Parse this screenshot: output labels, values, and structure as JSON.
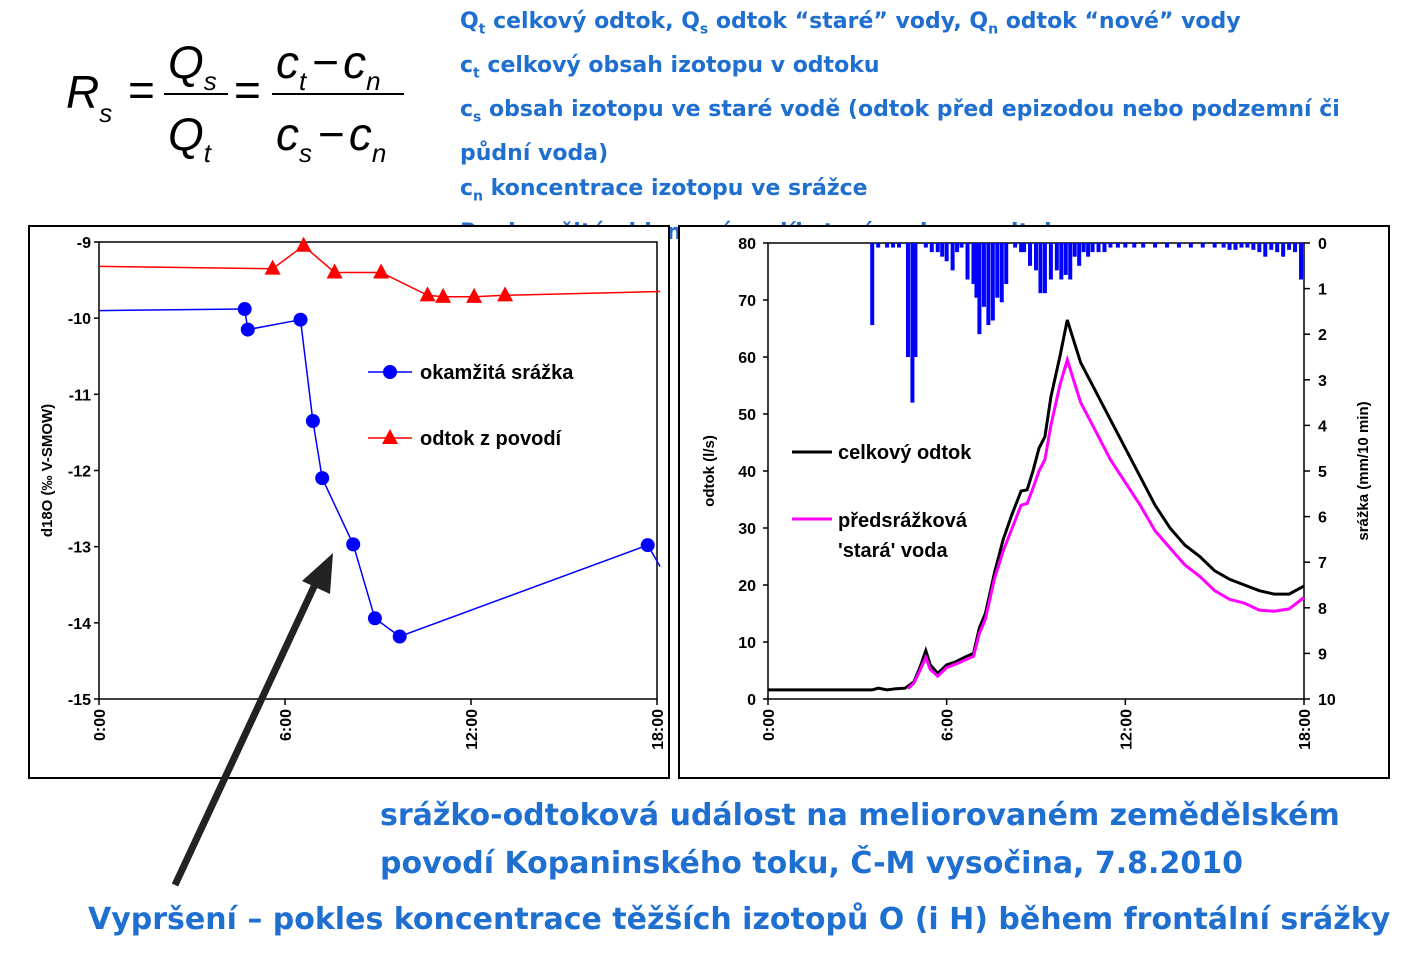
{
  "formula": {
    "lhs_symbol": "R",
    "lhs_sub": "s",
    "num1": "Q",
    "num1_sub": "s",
    "den1": "Q",
    "den1_sub": "t",
    "num2_a": "c",
    "num2_a_sub": "t",
    "num2_b": "c",
    "num2_b_sub": "n",
    "den2_a": "c",
    "den2_a_sub": "s",
    "den2_b": "c",
    "den2_b_sub": "n",
    "minus": "−",
    "equals": "="
  },
  "legend_lines": {
    "l1": {
      "s1": "Q",
      "sub1": "t",
      "t1": "  celkový odtok, Q",
      "sub2": "s",
      "t2": " odtok “staré” vody, Q",
      "sub3": "n",
      "t3": " odtok “nové” vody"
    },
    "l2": {
      "s1": "c",
      "sub1": "t",
      "t1": "  celkový obsah izotopu v odtoku"
    },
    "l3": {
      "s1": "c",
      "sub1": "s",
      "t1": " obsah izotopu ve staré vodě (odtok před epizodou nebo podzemní či"
    },
    "l4": {
      "t1": "půdní voda)"
    },
    "l5": {
      "s1": "c",
      "sub1": "n",
      "t1": " koncentrace izotopu ve srážce"
    },
    "l6": {
      "s1": "R",
      "sub1": "s",
      "t1": " okamžitý objemový podíl staré vody na odtoku"
    }
  },
  "chart_data": [
    {
      "type": "line",
      "title": "",
      "xlabel": "",
      "ylabel": "d18O (‰ V-SMOW)",
      "xlim": [
        0,
        18
      ],
      "ylim": [
        -15,
        -9
      ],
      "xticks": [
        {
          "value": 0,
          "label": "0:00"
        },
        {
          "value": 6,
          "label": "6:00"
        },
        {
          "value": 12,
          "label": "12:00"
        },
        {
          "value": 18,
          "label": "18:00"
        }
      ],
      "yticks": [
        {
          "value": -9,
          "label": "-9"
        },
        {
          "value": -10,
          "label": "-10"
        },
        {
          "value": -11,
          "label": "-11"
        },
        {
          "value": -12,
          "label": "-12"
        },
        {
          "value": -13,
          "label": "-13"
        },
        {
          "value": -14,
          "label": "-14"
        },
        {
          "value": -15,
          "label": "-15"
        }
      ],
      "series": [
        {
          "name": "okamžitá srážka",
          "color": "#0000ff",
          "marker": "circle",
          "line_extent": {
            "start": [
              0,
              -9.9
            ],
            "end": [
              18.1,
              -13.26
            ]
          },
          "points": [
            [
              4.7,
              -9.88
            ],
            [
              4.8,
              -10.15
            ],
            [
              6.5,
              -10.02
            ],
            [
              6.9,
              -11.35
            ],
            [
              7.2,
              -12.1
            ],
            [
              8.2,
              -12.97
            ],
            [
              8.9,
              -13.94
            ],
            [
              9.7,
              -14.18
            ],
            [
              17.7,
              -12.98
            ]
          ]
        },
        {
          "name": "odtok z povodí",
          "color": "#ff0000",
          "marker": "triangle",
          "line_extent": {
            "start": [
              0,
              -9.32
            ],
            "end": [
              18.1,
              -9.65
            ]
          },
          "points": [
            [
              5.6,
              -9.35
            ],
            [
              6.6,
              -9.05
            ],
            [
              7.6,
              -9.4
            ],
            [
              9.1,
              -9.4
            ],
            [
              10.6,
              -9.7
            ],
            [
              11.1,
              -9.72
            ],
            [
              12.1,
              -9.72
            ],
            [
              13.1,
              -9.7
            ]
          ]
        }
      ]
    },
    {
      "type": "line",
      "title": "",
      "xlabel": "",
      "ylabel": "odtok (l/s)",
      "y2label": "srážka (mm/10 min)",
      "xlim": [
        0,
        18
      ],
      "ylim": [
        0,
        80
      ],
      "y2lim": [
        10,
        0
      ],
      "xticks": [
        {
          "value": 0,
          "label": "0:00"
        },
        {
          "value": 6,
          "label": "6:00"
        },
        {
          "value": 12,
          "label": "12:00"
        },
        {
          "value": 18,
          "label": "18:00"
        }
      ],
      "yticks": [
        {
          "value": 0,
          "label": "0"
        },
        {
          "value": 10,
          "label": "10"
        },
        {
          "value": 20,
          "label": "20"
        },
        {
          "value": 30,
          "label": "30"
        },
        {
          "value": 40,
          "label": "40"
        },
        {
          "value": 50,
          "label": "50"
        },
        {
          "value": 60,
          "label": "60"
        },
        {
          "value": 70,
          "label": "70"
        },
        {
          "value": 80,
          "label": "80"
        }
      ],
      "y2ticks": [
        {
          "value": 0,
          "label": "0"
        },
        {
          "value": 1,
          "label": "1"
        },
        {
          "value": 2,
          "label": "2"
        },
        {
          "value": 3,
          "label": "3"
        },
        {
          "value": 4,
          "label": "4"
        },
        {
          "value": 5,
          "label": "5"
        },
        {
          "value": 6,
          "label": "6"
        },
        {
          "value": 7,
          "label": "7"
        },
        {
          "value": 8,
          "label": "8"
        },
        {
          "value": 9,
          "label": "9"
        },
        {
          "value": 10,
          "label": "10"
        }
      ],
      "series": [
        {
          "name": "celkový odtok",
          "color": "#000000",
          "points": [
            [
              0,
              1.6
            ],
            [
              3,
              1.6
            ],
            [
              3.5,
              1.6
            ],
            [
              3.7,
              1.9
            ],
            [
              4.0,
              1.6
            ],
            [
              4.3,
              1.8
            ],
            [
              4.6,
              1.9
            ],
            [
              4.9,
              3.0
            ],
            [
              5.1,
              5.5
            ],
            [
              5.3,
              8.5
            ],
            [
              5.45,
              6.0
            ],
            [
              5.7,
              4.5
            ],
            [
              6.0,
              6.0
            ],
            [
              6.3,
              6.5
            ],
            [
              6.6,
              7.3
            ],
            [
              6.9,
              8.0
            ],
            [
              7.1,
              12.5
            ],
            [
              7.3,
              15.0
            ],
            [
              7.6,
              22.0
            ],
            [
              7.9,
              28.0
            ],
            [
              8.2,
              32.5
            ],
            [
              8.5,
              36.5
            ],
            [
              8.7,
              36.7
            ],
            [
              8.9,
              40.0
            ],
            [
              9.1,
              44.0
            ],
            [
              9.3,
              46.0
            ],
            [
              9.5,
              53.0
            ],
            [
              9.8,
              60.0
            ],
            [
              10.05,
              66.5
            ],
            [
              10.2,
              64.0
            ],
            [
              10.5,
              59.0
            ],
            [
              11.0,
              54.0
            ],
            [
              11.5,
              49.0
            ],
            [
              12.0,
              44.0
            ],
            [
              12.5,
              39.0
            ],
            [
              13.0,
              34.0
            ],
            [
              13.5,
              30.0
            ],
            [
              14.0,
              27.0
            ],
            [
              14.5,
              25.0
            ],
            [
              15.0,
              22.5
            ],
            [
              15.5,
              21.0
            ],
            [
              16.0,
              20.0
            ],
            [
              16.5,
              19.0
            ],
            [
              17.0,
              18.4
            ],
            [
              17.5,
              18.4
            ],
            [
              18.0,
              19.8
            ]
          ]
        },
        {
          "name": "předsrážková 'stará' voda",
          "color": "#ff00ff",
          "points": [
            [
              4.7,
              1.8
            ],
            [
              4.9,
              2.8
            ],
            [
              5.1,
              5.0
            ],
            [
              5.3,
              7.3
            ],
            [
              5.45,
              5.2
            ],
            [
              5.7,
              4.0
            ],
            [
              6.0,
              5.5
            ],
            [
              6.3,
              6.1
            ],
            [
              6.6,
              6.8
            ],
            [
              6.9,
              7.5
            ],
            [
              7.1,
              11.5
            ],
            [
              7.3,
              14.0
            ],
            [
              7.6,
              21.0
            ],
            [
              7.9,
              26.0
            ],
            [
              8.2,
              30.0
            ],
            [
              8.5,
              34.0
            ],
            [
              8.7,
              34.3
            ],
            [
              8.9,
              37.0
            ],
            [
              9.1,
              40.0
            ],
            [
              9.3,
              42.0
            ],
            [
              9.5,
              48.0
            ],
            [
              9.8,
              55.0
            ],
            [
              10.05,
              59.5
            ],
            [
              10.2,
              57.0
            ],
            [
              10.5,
              52.0
            ],
            [
              11.0,
              47.0
            ],
            [
              11.5,
              42.0
            ],
            [
              12.0,
              38.0
            ],
            [
              12.5,
              34.0
            ],
            [
              13.0,
              29.5
            ],
            [
              13.5,
              26.5
            ],
            [
              14.0,
              23.5
            ],
            [
              14.5,
              21.5
            ],
            [
              15.0,
              19.0
            ],
            [
              15.5,
              17.5
            ],
            [
              16.0,
              16.8
            ],
            [
              16.5,
              15.6
            ],
            [
              17.0,
              15.4
            ],
            [
              17.5,
              15.8
            ],
            [
              18.0,
              17.8
            ]
          ]
        },
        {
          "name": "srážka",
          "type": "bar",
          "axis": "y2",
          "color": "#0000ff",
          "bars": [
            [
              3.5,
              1.8
            ],
            [
              3.7,
              0.1
            ],
            [
              4.0,
              0.1
            ],
            [
              4.2,
              0.1
            ],
            [
              4.4,
              0.1
            ],
            [
              4.7,
              2.5
            ],
            [
              4.85,
              3.5
            ],
            [
              4.95,
              2.5
            ],
            [
              5.3,
              0.1
            ],
            [
              5.5,
              0.2
            ],
            [
              5.7,
              0.2
            ],
            [
              5.85,
              0.3
            ],
            [
              6.0,
              0.4
            ],
            [
              6.2,
              0.6
            ],
            [
              6.35,
              0.2
            ],
            [
              6.5,
              0.1
            ],
            [
              6.7,
              0.8
            ],
            [
              6.9,
              0.9
            ],
            [
              7.0,
              1.2
            ],
            [
              7.1,
              2.0
            ],
            [
              7.25,
              1.4
            ],
            [
              7.4,
              1.8
            ],
            [
              7.55,
              1.7
            ],
            [
              7.7,
              1.2
            ],
            [
              7.85,
              1.3
            ],
            [
              8.0,
              0.9
            ],
            [
              8.3,
              0.1
            ],
            [
              8.5,
              0.2
            ],
            [
              8.6,
              0.2
            ],
            [
              8.8,
              0.5
            ],
            [
              9.0,
              0.6
            ],
            [
              9.15,
              1.1
            ],
            [
              9.3,
              1.1
            ],
            [
              9.5,
              0.8
            ],
            [
              9.7,
              0.6
            ],
            [
              9.85,
              0.8
            ],
            [
              10.0,
              0.7
            ],
            [
              10.15,
              0.8
            ],
            [
              10.3,
              0.3
            ],
            [
              10.45,
              0.5
            ],
            [
              10.6,
              0.2
            ],
            [
              10.75,
              0.3
            ],
            [
              10.9,
              0.2
            ],
            [
              11.1,
              0.2
            ],
            [
              11.3,
              0.2
            ],
            [
              11.5,
              0.1
            ],
            [
              11.75,
              0.1
            ],
            [
              12.0,
              0.1
            ],
            [
              12.3,
              0.1
            ],
            [
              12.6,
              0.1
            ],
            [
              13.0,
              0.1
            ],
            [
              13.4,
              0.1
            ],
            [
              13.8,
              0.1
            ],
            [
              14.2,
              0.1
            ],
            [
              14.6,
              0.1
            ],
            [
              15.0,
              0.1
            ],
            [
              15.3,
              0.1
            ],
            [
              15.5,
              0.15
            ],
            [
              15.7,
              0.15
            ],
            [
              15.9,
              0.1
            ],
            [
              16.1,
              0.1
            ],
            [
              16.3,
              0.15
            ],
            [
              16.5,
              0.2
            ],
            [
              16.7,
              0.3
            ],
            [
              16.9,
              0.15
            ],
            [
              17.1,
              0.2
            ],
            [
              17.3,
              0.3
            ],
            [
              17.5,
              0.15
            ],
            [
              17.7,
              0.2
            ],
            [
              17.9,
              0.8
            ]
          ]
        }
      ]
    }
  ],
  "captions": {
    "event_line1": "srážko-odtoková událost na meliorovaném zemědělském",
    "event_line2": "povodí Kopaninského toku, Č-M vysočina, 7.8.2010",
    "bottom": "Vypršení – pokles koncentrace těžších izotopů O (i H) během frontální srážky"
  },
  "colors": {
    "text_blue": "#1f6fd1",
    "arrow": "#222222"
  }
}
